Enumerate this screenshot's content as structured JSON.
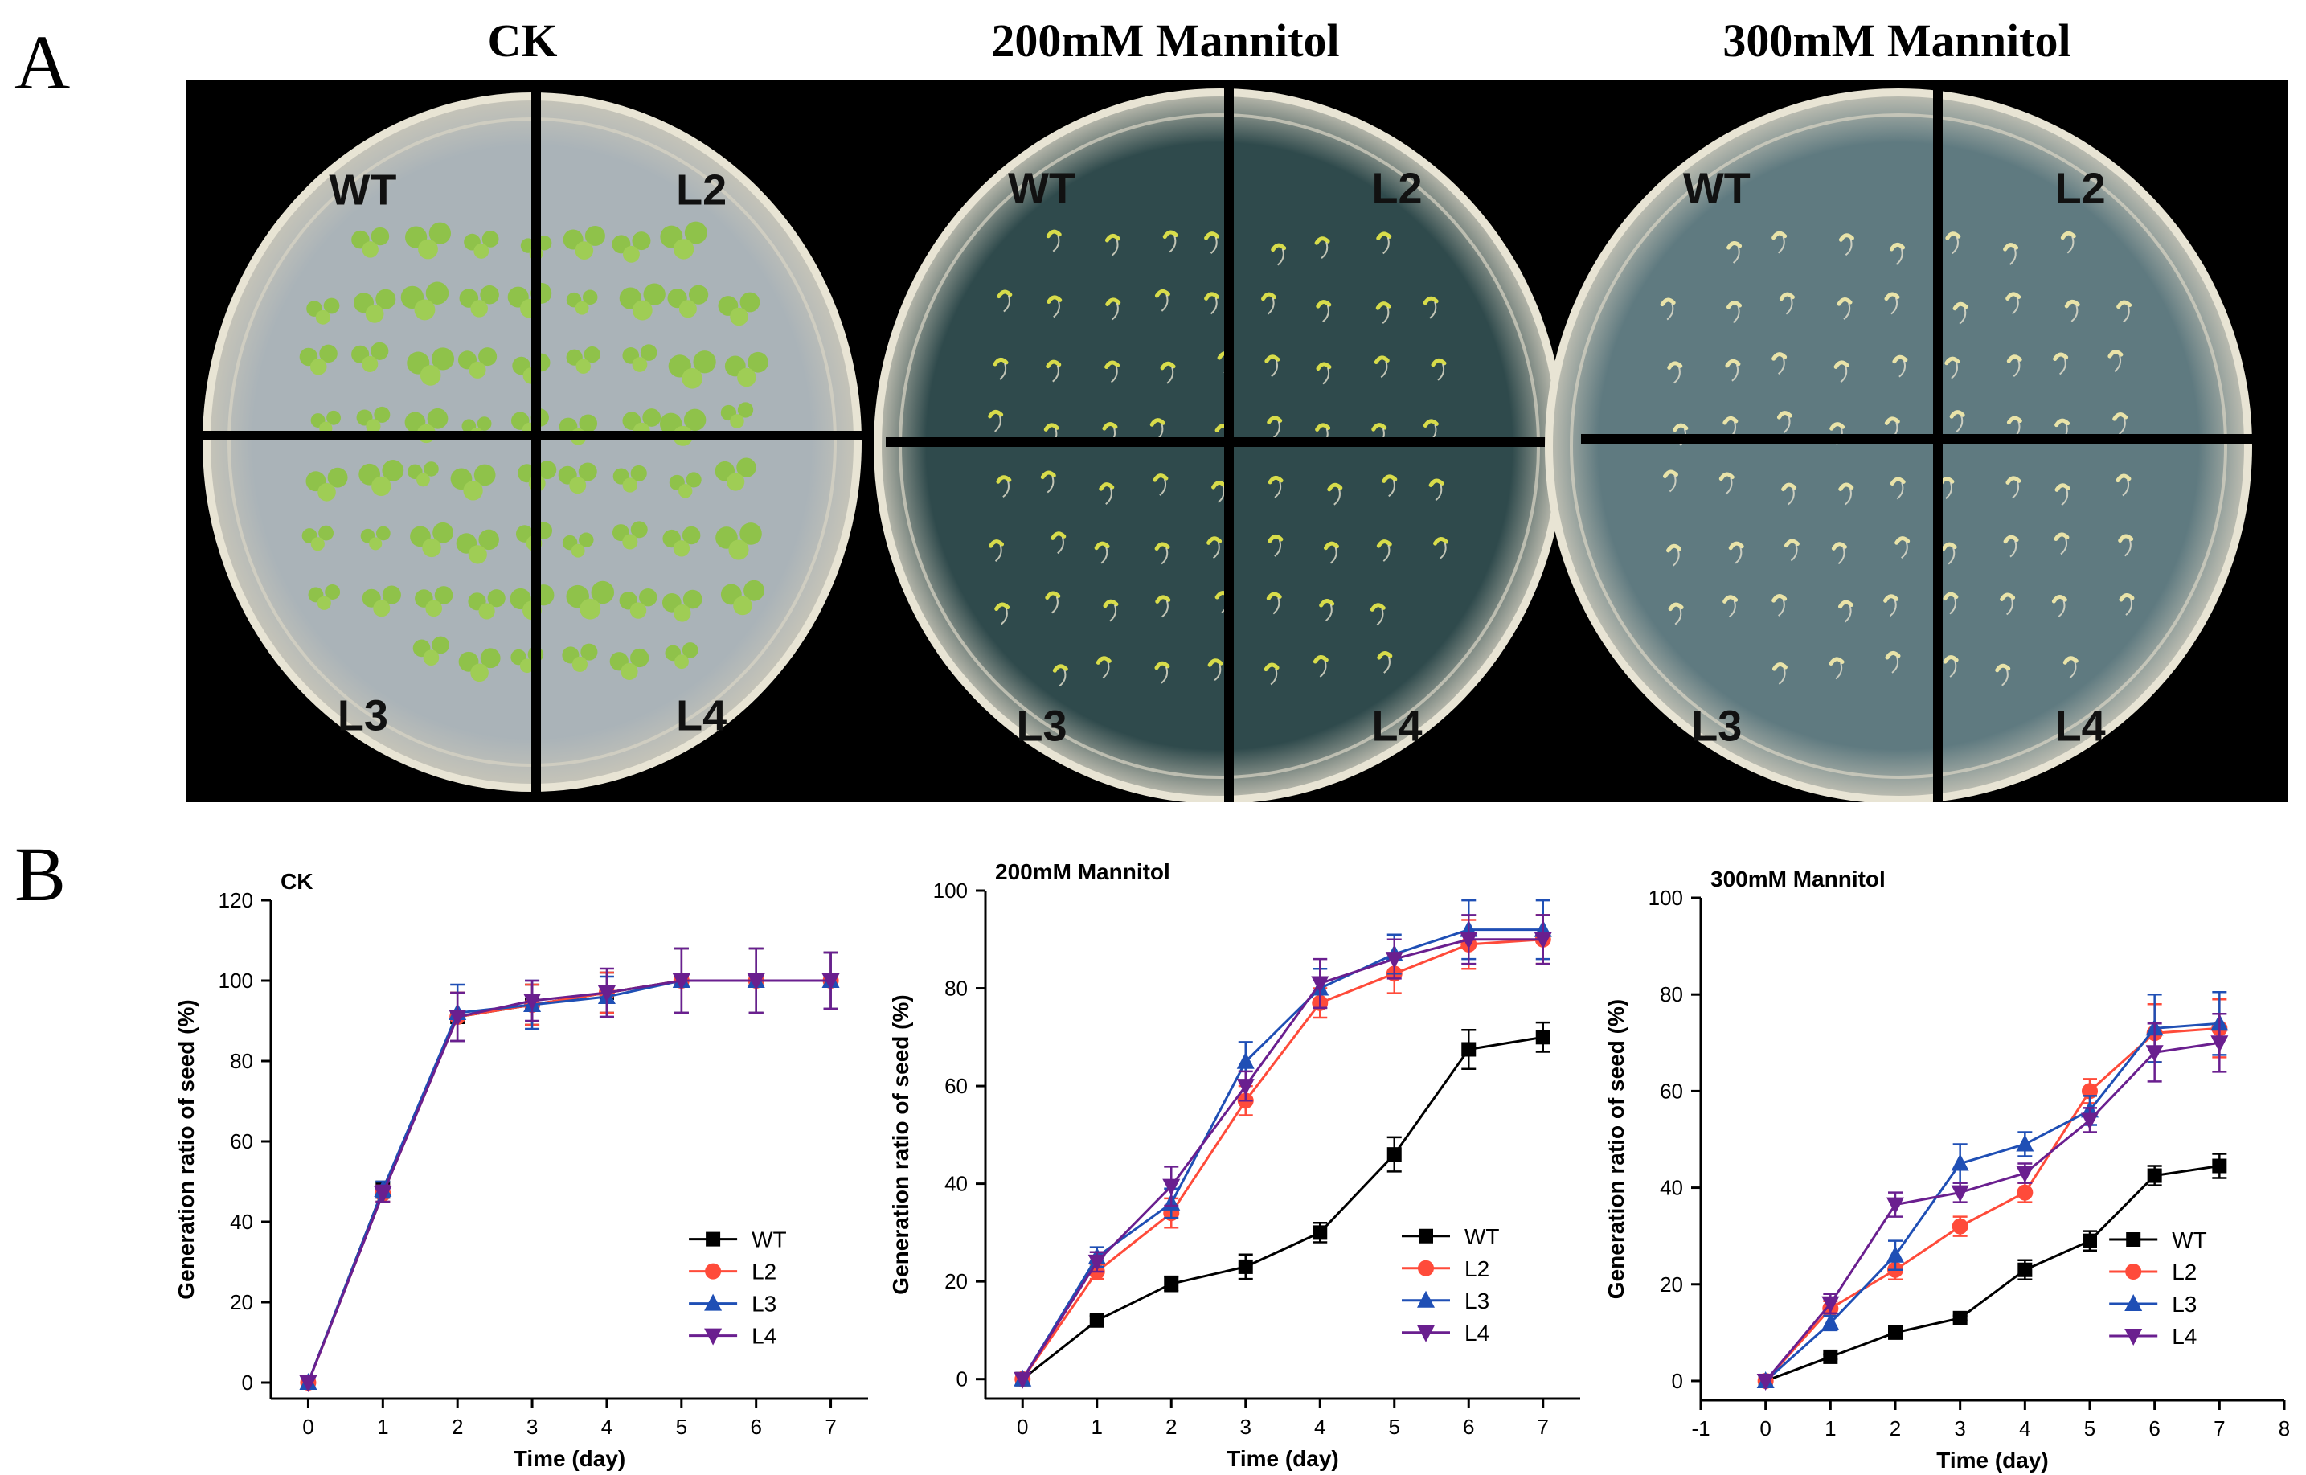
{
  "panel_a": {
    "letter": "A",
    "titles": [
      "CK",
      "200mM Mannitol",
      "300mM Mannitol"
    ],
    "plates": [
      {
        "name": "CK",
        "labels": [
          "WT",
          "L2",
          "L3",
          "L4"
        ],
        "seedling_color": "#8fc24a",
        "medium_color": "#aab3b8"
      },
      {
        "name": "200mM Mannitol",
        "labels": [
          "WT",
          "L2",
          "L3",
          "L4"
        ],
        "seedling_color": "#d8dc4a",
        "medium_color": "#2f4a4c"
      },
      {
        "name": "300mM Mannitol",
        "labels": [
          "WT",
          "L2",
          "L3",
          "L4"
        ],
        "seedling_color": "#e9e3a8",
        "medium_color": "#5f7a80"
      }
    ]
  },
  "panel_b": {
    "letter": "B"
  },
  "colors": {
    "WT": "#000000",
    "L2": "#ff4b3a",
    "L3": "#1f4fb5",
    "L4": "#6a1f8f"
  },
  "chart_data": [
    {
      "type": "line",
      "title": "CK",
      "xlabel": "Time (day)",
      "ylabel": "Generation ratio of seed (%)",
      "xlim": [
        -0.5,
        7.5
      ],
      "ylim": [
        -4,
        120
      ],
      "xticks": [
        0,
        1,
        2,
        3,
        4,
        5,
        6,
        7
      ],
      "yticks": [
        0,
        20,
        40,
        60,
        80,
        100,
        120
      ],
      "x": [
        0,
        1,
        2,
        3,
        4,
        5,
        6,
        7
      ],
      "series": [
        {
          "name": "WT",
          "values": [
            0,
            48,
            91,
            94,
            97,
            100,
            100,
            100
          ],
          "errors": [
            0,
            2,
            6,
            5,
            5,
            8,
            8,
            7
          ]
        },
        {
          "name": "L2",
          "values": [
            0,
            47,
            91,
            94,
            97,
            100,
            100,
            100
          ],
          "errors": [
            0,
            2,
            6,
            5,
            5,
            8,
            8,
            7
          ]
        },
        {
          "name": "L3",
          "values": [
            0,
            48,
            92,
            94,
            96,
            100,
            100,
            100
          ],
          "errors": [
            0,
            2,
            7,
            6,
            5,
            8,
            8,
            7
          ]
        },
        {
          "name": "L4",
          "values": [
            0,
            47,
            91,
            95,
            97,
            100,
            100,
            100
          ],
          "errors": [
            0,
            2,
            6,
            5,
            6,
            8,
            8,
            7
          ]
        }
      ],
      "legend": "lower-right"
    },
    {
      "type": "line",
      "title": "200mM Mannitol",
      "xlabel": "Time (day)",
      "ylabel": "Generation ratio of seed (%)",
      "xlim": [
        -0.5,
        7.5
      ],
      "ylim": [
        -4,
        100
      ],
      "xticks": [
        0,
        1,
        2,
        3,
        4,
        5,
        6,
        7
      ],
      "yticks": [
        0,
        20,
        40,
        60,
        80,
        100
      ],
      "x": [
        0,
        1,
        2,
        3,
        4,
        5,
        6,
        7
      ],
      "series": [
        {
          "name": "WT",
          "values": [
            0,
            12,
            19.5,
            23,
            30,
            46,
            67.5,
            70
          ],
          "errors": [
            0,
            1,
            1.5,
            2.5,
            2,
            3.5,
            4,
            3
          ]
        },
        {
          "name": "L2",
          "values": [
            0,
            22,
            34,
            57,
            77,
            83,
            89,
            90
          ],
          "errors": [
            0,
            1.5,
            3,
            3,
            3,
            4,
            5,
            5
          ]
        },
        {
          "name": "L3",
          "values": [
            0,
            25,
            36,
            65,
            80,
            87,
            92,
            92
          ],
          "errors": [
            0,
            2,
            3,
            4,
            4,
            4,
            6,
            6
          ]
        },
        {
          "name": "L4",
          "values": [
            0,
            24,
            39.5,
            60,
            81,
            86,
            90,
            90
          ],
          "errors": [
            0,
            2,
            4,
            3,
            5,
            4,
            5,
            5
          ]
        }
      ],
      "legend": "lower-right"
    },
    {
      "type": "line",
      "title": "300mM Mannitol",
      "xlabel": "Time (day)",
      "ylabel": "Generation ratio of seed (%)",
      "xlim": [
        -1,
        8
      ],
      "ylim": [
        -4,
        100
      ],
      "xticks": [
        -1,
        0,
        1,
        2,
        3,
        4,
        5,
        6,
        7,
        8
      ],
      "yticks": [
        0,
        20,
        40,
        60,
        80,
        100
      ],
      "x": [
        0,
        1,
        2,
        3,
        4,
        5,
        6,
        7
      ],
      "series": [
        {
          "name": "WT",
          "values": [
            0,
            5,
            10,
            13,
            23,
            29,
            42.5,
            44.5
          ],
          "errors": [
            0,
            0.5,
            0.5,
            0.5,
            2,
            2,
            2,
            2.5
          ]
        },
        {
          "name": "L2",
          "values": [
            0,
            15,
            23,
            32,
            39,
            60,
            72,
            73
          ],
          "errors": [
            0,
            1.5,
            2,
            2,
            2,
            2.5,
            6,
            6
          ]
        },
        {
          "name": "L3",
          "values": [
            0,
            12,
            26,
            45,
            49,
            56,
            73,
            74
          ],
          "errors": [
            0,
            1.5,
            3,
            4,
            2.5,
            3,
            7,
            6.5
          ]
        },
        {
          "name": "L4",
          "values": [
            0,
            16,
            36.5,
            39,
            43,
            54,
            68,
            70
          ],
          "errors": [
            0,
            2,
            2.5,
            2,
            2,
            2.5,
            6,
            6
          ]
        }
      ],
      "legend": "lower-right"
    }
  ]
}
